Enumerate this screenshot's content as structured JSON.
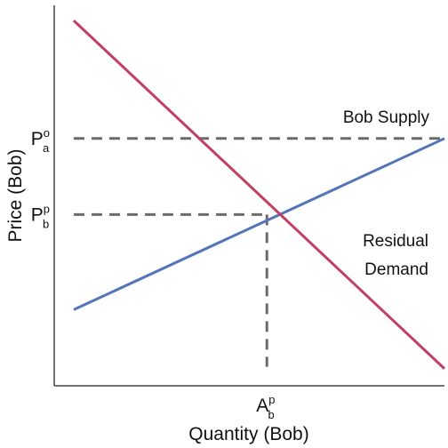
{
  "chart_data": {
    "type": "line",
    "xlabel": "Quantity (Bob)",
    "ylabel": "Price (Bob)",
    "xlim": [
      0,
      1
    ],
    "ylim": [
      0,
      1
    ],
    "series": [
      {
        "name": "Bob Supply",
        "color": "#5274b8",
        "points": [
          [
            0.05,
            0.2
          ],
          [
            1.0,
            0.65
          ]
        ]
      },
      {
        "name": "Residual Demand",
        "color": "#c13f63",
        "points": [
          [
            0.05,
            0.96
          ],
          [
            1.0,
            0.045
          ]
        ]
      }
    ],
    "y_ticks": [
      {
        "main": "P",
        "sup": "o",
        "sub": "a",
        "value": 0.65
      },
      {
        "main": "P",
        "sup": "p",
        "sub": "b",
        "value": 0.45
      }
    ],
    "x_ticks": [
      {
        "main": "A",
        "sup": "p",
        "sub": "b",
        "value": 0.545
      }
    ],
    "guide_color": "#6b6b6b",
    "grid": false
  },
  "annotations": {
    "supply": "Bob Supply",
    "demand_line1": "Residual",
    "demand_line2": "Demand"
  }
}
